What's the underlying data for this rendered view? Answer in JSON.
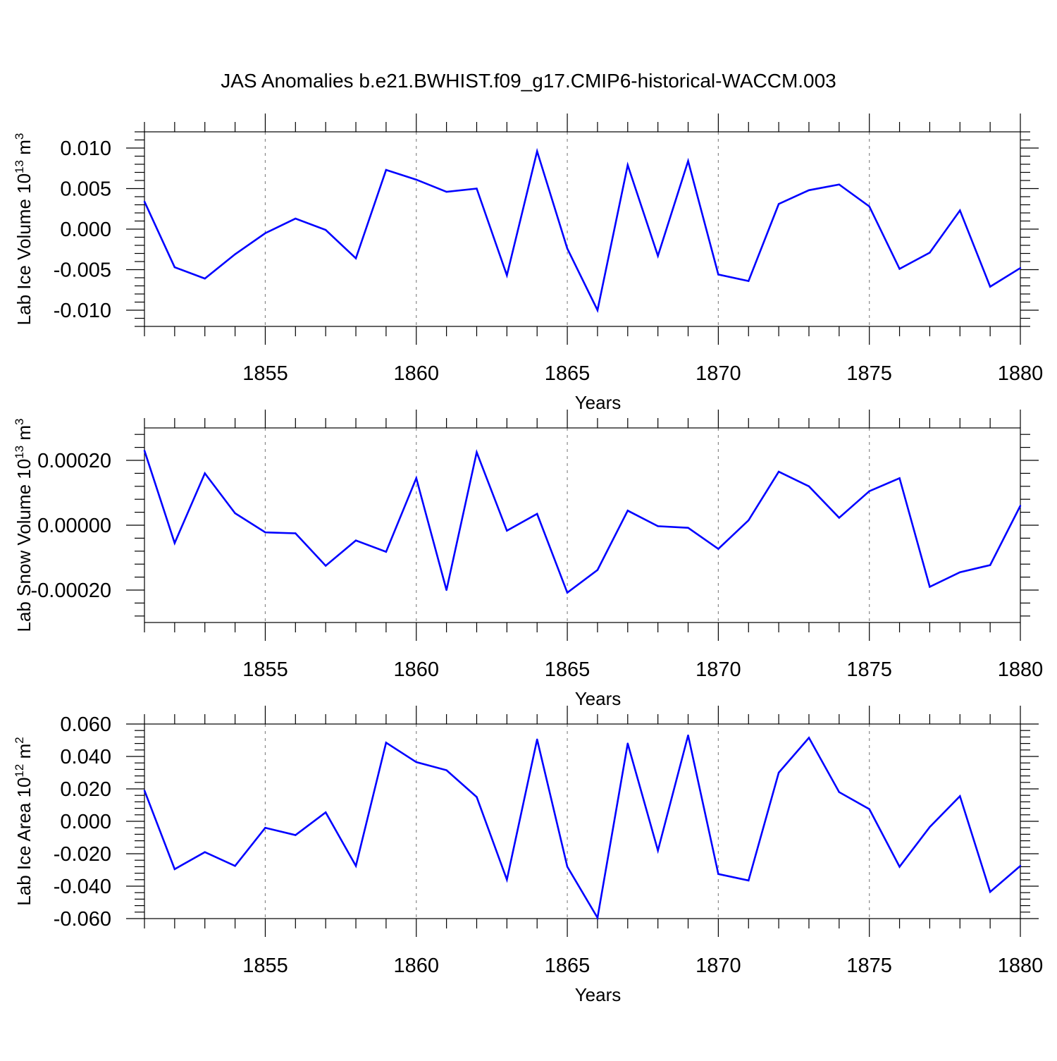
{
  "title": "JAS Anomalies b.e21.BWHIST.f09_g17.CMIP6-historical-WACCM.003",
  "colors": {
    "series": "#0000ff",
    "axis": "#000000",
    "grid": "#888888"
  },
  "chart_data": [
    {
      "type": "line",
      "xlabel": "Years",
      "ylabel_text": "Lab Ice Volume 10",
      "ylabel_exp": "13",
      "ylabel_unit": " m",
      "ylabel_unit_exp": "3",
      "xlim": [
        1851,
        1880
      ],
      "ylim": [
        -0.012,
        0.012
      ],
      "xticks": [
        1855,
        1860,
        1865,
        1870,
        1875,
        1880
      ],
      "yticks": [
        -0.01,
        -0.005,
        0.0,
        0.005,
        0.01
      ],
      "ytick_labels": [
        "-0.010",
        "-0.005",
        "0.000",
        "0.005",
        "0.010"
      ],
      "grid": "vertical dashed at major x ticks",
      "series": [
        {
          "name": "Lab Ice Volume",
          "x": [
            1851,
            1852,
            1853,
            1854,
            1855,
            1856,
            1857,
            1858,
            1859,
            1860,
            1861,
            1862,
            1863,
            1864,
            1865,
            1866,
            1867,
            1868,
            1869,
            1870,
            1871,
            1872,
            1873,
            1874,
            1875,
            1876,
            1877,
            1878,
            1879,
            1880
          ],
          "values": [
            0.0034,
            -0.0047,
            -0.0061,
            -0.0031,
            -0.0005,
            0.0013,
            -0.0001,
            -0.0036,
            0.0073,
            0.0061,
            0.0046,
            0.005,
            -0.0057,
            0.0096,
            -0.0024,
            -0.01,
            0.0079,
            -0.0033,
            0.0084,
            -0.0056,
            -0.0064,
            0.0031,
            0.0048,
            0.0055,
            0.0028,
            -0.0049,
            -0.0029,
            0.0023,
            -0.0071,
            -0.0048
          ]
        }
      ]
    },
    {
      "type": "line",
      "xlabel": "Years",
      "ylabel_text": "Lab Snow Volume 10",
      "ylabel_exp": "13",
      "ylabel_unit": " m",
      "ylabel_unit_exp": "3",
      "xlim": [
        1851,
        1880
      ],
      "ylim": [
        -0.0003,
        0.0003
      ],
      "xticks": [
        1855,
        1860,
        1865,
        1870,
        1875,
        1880
      ],
      "yticks": [
        -0.0002,
        0.0,
        0.0002
      ],
      "ytick_labels": [
        "-0.00020",
        "0.00000",
        "0.00020"
      ],
      "grid": "vertical dashed at major x ticks",
      "series": [
        {
          "name": "Lab Snow Volume",
          "x": [
            1851,
            1852,
            1853,
            1854,
            1855,
            1856,
            1857,
            1858,
            1859,
            1860,
            1861,
            1862,
            1863,
            1864,
            1865,
            1866,
            1867,
            1868,
            1869,
            1870,
            1871,
            1872,
            1873,
            1874,
            1875,
            1876,
            1877,
            1878,
            1879,
            1880
          ],
          "values": [
            0.00023,
            -5.5e-05,
            0.00016,
            3.7e-05,
            -2.2e-05,
            -2.5e-05,
            -0.000125,
            -4.7e-05,
            -8.2e-05,
            0.000145,
            -0.0002,
            0.000225,
            -1.7e-05,
            3.5e-05,
            -0.000208,
            -0.000138,
            4.5e-05,
            -3e-06,
            -8e-06,
            -7.3e-05,
            1.5e-05,
            0.000165,
            0.00012,
            2.3e-05,
            0.000105,
            0.000145,
            -0.00019,
            -0.000145,
            -0.000123,
            6e-05
          ]
        }
      ]
    },
    {
      "type": "line",
      "xlabel": "Years",
      "ylabel_text": "Lab Ice Area 10",
      "ylabel_exp": "12",
      "ylabel_unit": " m",
      "ylabel_unit_exp": "2",
      "xlim": [
        1851,
        1880
      ],
      "ylim": [
        -0.06,
        0.06
      ],
      "xticks": [
        1855,
        1860,
        1865,
        1870,
        1875,
        1880
      ],
      "yticks": [
        -0.06,
        -0.04,
        -0.02,
        0.0,
        0.02,
        0.04,
        0.06
      ],
      "ytick_labels": [
        "-0.060",
        "-0.040",
        "-0.020",
        "0.000",
        "0.020",
        "0.040",
        "0.060"
      ],
      "grid": "vertical dashed at major x ticks",
      "series": [
        {
          "name": "Lab Ice Area",
          "x": [
            1851,
            1852,
            1853,
            1854,
            1855,
            1856,
            1857,
            1858,
            1859,
            1860,
            1861,
            1862,
            1863,
            1864,
            1865,
            1866,
            1867,
            1868,
            1869,
            1870,
            1871,
            1872,
            1873,
            1874,
            1875,
            1876,
            1877,
            1878,
            1879,
            1880
          ],
          "values": [
            0.019,
            -0.0295,
            -0.019,
            -0.0275,
            -0.004,
            -0.0085,
            0.0055,
            -0.0275,
            0.0485,
            0.0365,
            0.0315,
            0.015,
            -0.036,
            0.0505,
            -0.028,
            -0.0595,
            0.048,
            -0.018,
            0.053,
            -0.0325,
            -0.0365,
            0.03,
            0.0515,
            0.018,
            0.0075,
            -0.028,
            -0.0035,
            0.0155,
            -0.0435,
            -0.0275
          ]
        }
      ]
    }
  ]
}
